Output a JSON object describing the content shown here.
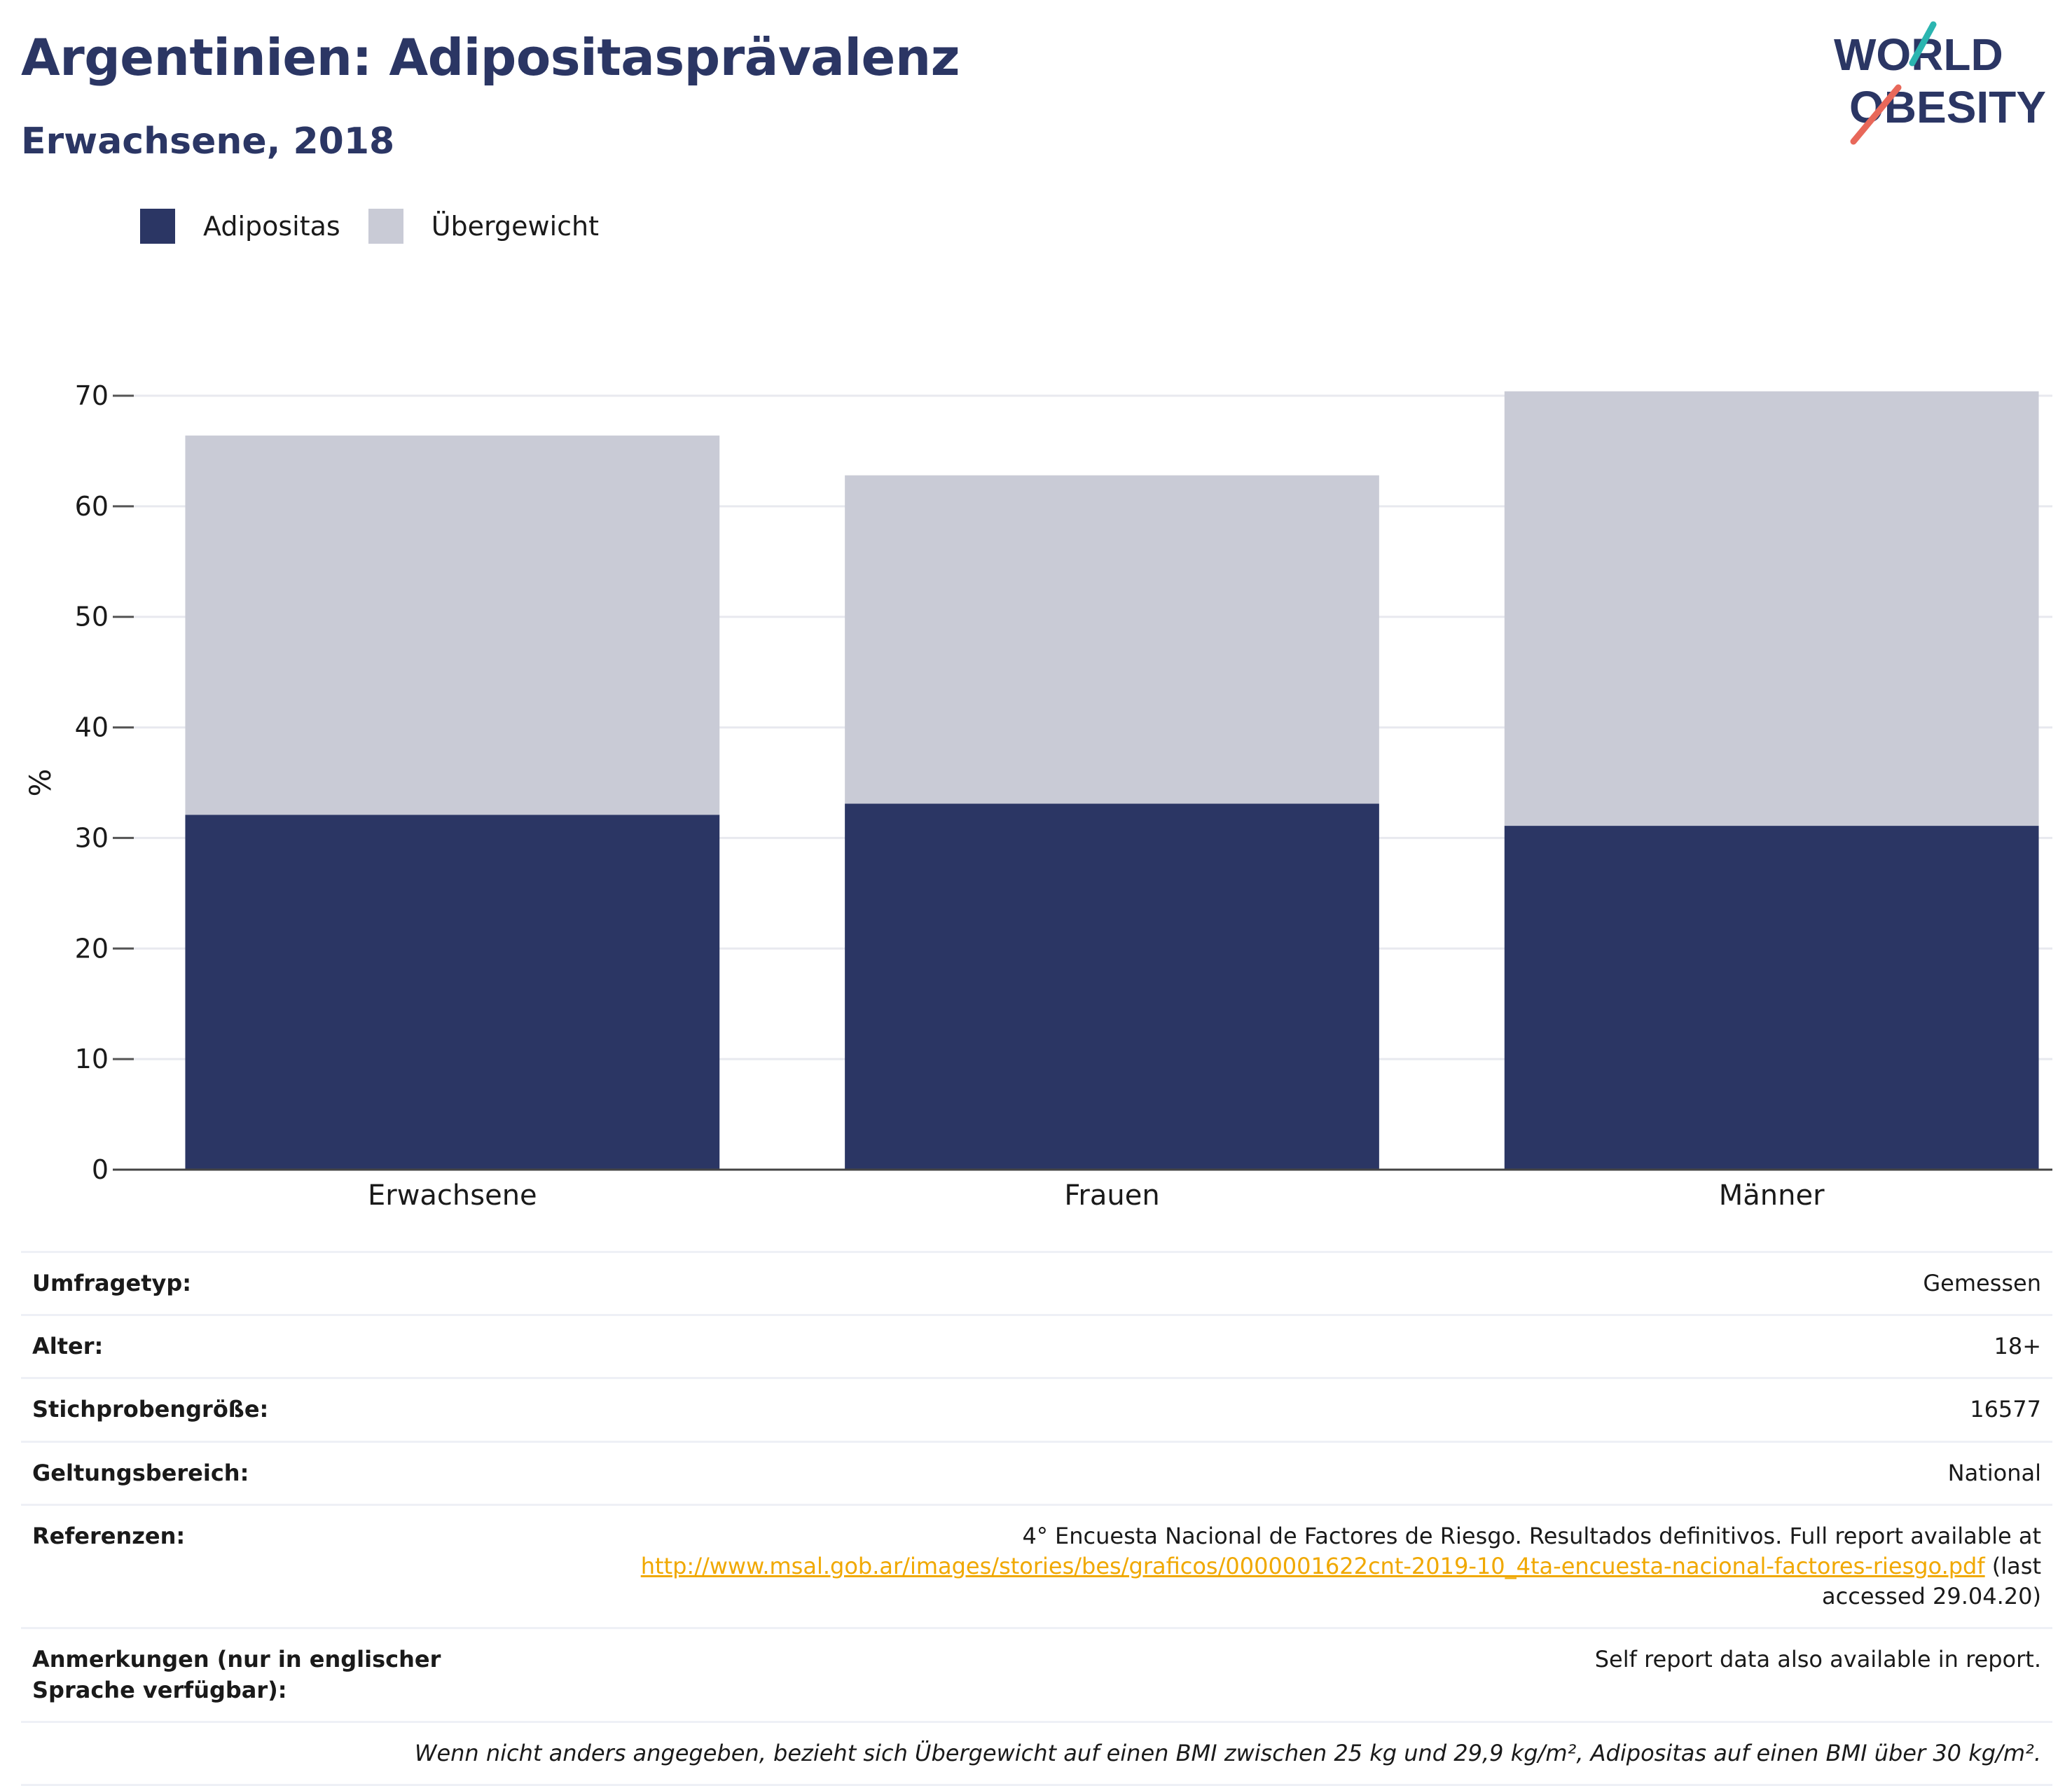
{
  "header": {
    "title": "Argentinien: Adipositasprävalenz",
    "subtitle": "Erwachsene, 2018"
  },
  "logo": {
    "line1": "WORLD",
    "line2": "OBESITY",
    "slash_colors": [
      "#2bb5b0",
      "#e8685a"
    ]
  },
  "colors": {
    "adipositas": "#2b3664",
    "uebergewicht": "#c9cbd6",
    "accent": "#2b3664",
    "link": "#f0a800"
  },
  "legend": {
    "items": [
      {
        "label": "Adipositas",
        "color": "#2b3664"
      },
      {
        "label": "Übergewicht",
        "color": "#c9cbd6"
      }
    ]
  },
  "chart_data": {
    "type": "bar",
    "stacked": true,
    "categories": [
      "Erwachsene",
      "Frauen",
      "Männer"
    ],
    "series": [
      {
        "name": "Adipositas",
        "values": [
          32.1,
          33.1,
          31.1
        ],
        "color": "#2b3664"
      },
      {
        "name": "Übergewicht",
        "values": [
          34.3,
          29.7,
          39.3
        ],
        "color": "#c9cbd6"
      }
    ],
    "ylabel": "%",
    "ylim": [
      0,
      70
    ],
    "yticks": [
      0,
      10,
      20,
      30,
      40,
      50,
      60,
      70
    ],
    "grid": true,
    "legend_position": "top-left"
  },
  "info": {
    "rows": [
      {
        "label": "Umfragetyp:",
        "value": "Gemessen"
      },
      {
        "label": "Alter:",
        "value": "18+"
      },
      {
        "label": "Stichprobengröße:",
        "value": "16577"
      },
      {
        "label": "Geltungsbereich:",
        "value": "National"
      }
    ],
    "references": {
      "label": "Referenzen:",
      "text_before": "4° Encuesta Nacional de Factores de Riesgo. Resultados definitivos. Full report available at",
      "link": "http://www.msal.gob.ar/images/stories/bes/graficos/0000001622cnt-2019-10_4ta-encuesta-nacional-factores-riesgo.pdf",
      "text_after": "(last accessed 29.04.20)"
    },
    "notes": {
      "label": "Anmerkungen (nur in englischer Sprache verfügbar):",
      "value": "Self report data also available in report."
    },
    "footnote": "Wenn nicht anders angegeben, bezieht sich Übergewicht auf einen BMI zwischen 25 kg und 29,9 kg/m², Adipositas auf einen BMI über 30 kg/m²."
  }
}
